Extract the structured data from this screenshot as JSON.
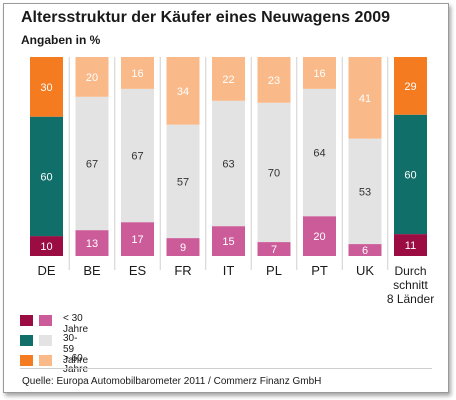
{
  "colors": {
    "dark": {
      "young": "#9b0c43",
      "mid": "#116f6a",
      "old": "#f47b20"
    },
    "light": {
      "young": "#cc5b99",
      "mid": "#e3e3e3",
      "old": "#f9b988"
    },
    "text_light": "#ffffff",
    "text_dark": "#333333"
  },
  "chart_data": {
    "type": "bar",
    "stacked": true,
    "title": "Altersstruktur der Käufer eines Neuwagens 2009",
    "subtitle": "Angaben in %",
    "categories": [
      [
        "DE"
      ],
      [
        "BE"
      ],
      [
        "ES"
      ],
      [
        "FR"
      ],
      [
        "IT"
      ],
      [
        "PL"
      ],
      [
        "PT"
      ],
      [
        "UK"
      ],
      [
        "Durch",
        "schnitt",
        "8 Länder"
      ]
    ],
    "highlight": [
      true,
      false,
      false,
      false,
      false,
      false,
      false,
      false,
      true
    ],
    "series": [
      {
        "name": "< 30 Jahre",
        "values": [
          10,
          13,
          17,
          9,
          15,
          7,
          20,
          6,
          11
        ]
      },
      {
        "name": "30-59 Jahre",
        "values": [
          60,
          67,
          67,
          57,
          63,
          70,
          64,
          53,
          60
        ]
      },
      {
        "name": "> 60 Jahre",
        "values": [
          30,
          20,
          16,
          34,
          22,
          23,
          16,
          41,
          29
        ]
      }
    ],
    "ylim": [
      0,
      100
    ]
  },
  "legend": [
    {
      "label": "< 30 Jahre",
      "key": "young"
    },
    {
      "label": "30-59 Jahre",
      "key": "mid"
    },
    {
      "label": "> 60 Jahre",
      "key": "old"
    }
  ],
  "source": "Quelle: Europa Automobilbarometer 2011 / Commerz Finanz GmbH"
}
